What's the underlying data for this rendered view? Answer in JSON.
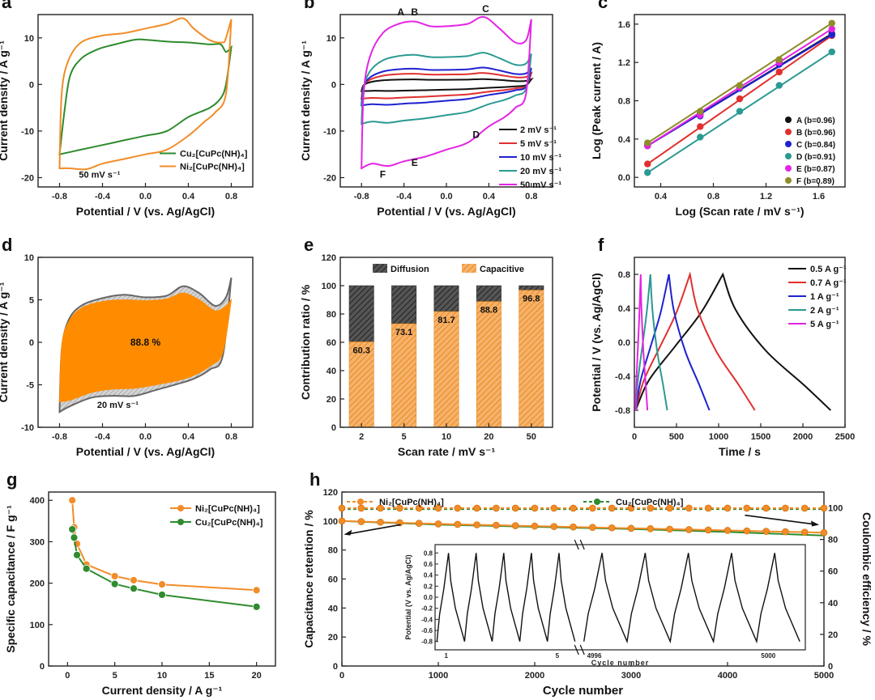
{
  "palette": {
    "green": "#2E8B2E",
    "orange": "#F28C28",
    "black": "#111111",
    "red": "#E0302F",
    "blue": "#1F22D0",
    "teal": "#2A9A92",
    "magenta": "#E424E4",
    "olive": "#8E8E2A",
    "grey": "#BDBDBD"
  },
  "panels": [
    {
      "letter": "a",
      "type": "cv",
      "xlabel": "Potential / V (vs. Ag/AgCl)",
      "ylabel": "Current density / A g⁻¹",
      "xlim": [
        -1.0,
        1.0
      ],
      "ylim": [
        -22,
        15
      ],
      "xticks": [
        "-0.8",
        "-0.4",
        "0.0",
        "0.4",
        "0.8"
      ],
      "yticks": [
        "-20",
        "-10",
        "0",
        "10"
      ],
      "annotation": "50 mV s⁻¹",
      "legend": [
        "Cu₂[CuPc(NH)₄]",
        "Ni₂[CuPc(NH)₄]"
      ],
      "series": [
        {
          "name": "Cu₂[CuPc(NH)₄]",
          "color": "green",
          "upper": [
            [
              -0.8,
              -15
            ],
            [
              -0.75,
              -5
            ],
            [
              -0.7,
              2
            ],
            [
              -0.6,
              5.5
            ],
            [
              -0.45,
              7.5
            ],
            [
              -0.3,
              8.5
            ],
            [
              -0.1,
              9.6
            ],
            [
              0.0,
              9.6
            ],
            [
              0.2,
              9.2
            ],
            [
              0.4,
              9
            ],
            [
              0.6,
              8.6
            ],
            [
              0.7,
              8.6
            ],
            [
              0.75,
              7
            ],
            [
              0.8,
              8
            ]
          ],
          "lower": [
            [
              -0.8,
              -15
            ],
            [
              -0.6,
              -14
            ],
            [
              -0.4,
              -13
            ],
            [
              -0.2,
              -12
            ],
            [
              0.0,
              -11
            ],
            [
              0.2,
              -10
            ],
            [
              0.4,
              -7
            ],
            [
              0.6,
              -5
            ],
            [
              0.7,
              -3
            ],
            [
              0.75,
              0
            ],
            [
              0.8,
              8
            ]
          ]
        },
        {
          "name": "Ni₂[CuPc(NH)₄]",
          "color": "orange",
          "upper": [
            [
              -0.8,
              -18
            ],
            [
              -0.78,
              -2
            ],
            [
              -0.72,
              5
            ],
            [
              -0.6,
              9
            ],
            [
              -0.4,
              10.5
            ],
            [
              -0.2,
              11
            ],
            [
              0.0,
              12
            ],
            [
              0.2,
              13
            ],
            [
              0.35,
              14.2
            ],
            [
              0.45,
              12
            ],
            [
              0.6,
              9.5
            ],
            [
              0.72,
              9
            ],
            [
              0.75,
              10
            ],
            [
              0.8,
              14
            ]
          ],
          "lower": [
            [
              -0.8,
              -18
            ],
            [
              -0.7,
              -18
            ],
            [
              -0.55,
              -18.2
            ],
            [
              -0.4,
              -17
            ],
            [
              -0.2,
              -16
            ],
            [
              0.0,
              -15
            ],
            [
              0.2,
              -14
            ],
            [
              0.4,
              -11
            ],
            [
              0.55,
              -8
            ],
            [
              0.65,
              -6
            ],
            [
              0.75,
              -2
            ],
            [
              0.8,
              14
            ]
          ]
        }
      ]
    },
    {
      "letter": "b",
      "type": "cv",
      "xlabel": "Potential / V (vs. Ag/AgCl)",
      "ylabel": "Current density / A g⁻¹",
      "xlim": [
        -1.0,
        1.0
      ],
      "ylim": [
        -22,
        15
      ],
      "xticks": [
        "-0.8",
        "-0.4",
        "0.0",
        "0.4",
        "0.8"
      ],
      "yticks": [
        "-20",
        "-10",
        "0",
        "10"
      ],
      "peak_labels": [
        {
          "text": "A",
          "x": -0.43,
          "y": 14.8
        },
        {
          "text": "B",
          "x": -0.3,
          "y": 14.8
        },
        {
          "text": "C",
          "x": 0.37,
          "y": 15.5
        },
        {
          "text": "D",
          "x": 0.28,
          "y": -11.5
        },
        {
          "text": "E",
          "x": -0.3,
          "y": -17.5
        },
        {
          "text": "F",
          "x": -0.6,
          "y": -20
        }
      ],
      "legend": [
        "2 mV s⁻¹",
        "5 mV s⁻¹",
        "10 mV s⁻¹",
        "20 mV s⁻¹",
        "50 mV s⁻¹"
      ],
      "series": [
        {
          "name": "2 mV s⁻¹",
          "color": "black",
          "scale": 0.08
        },
        {
          "name": "5 mV s⁻¹",
          "color": "red",
          "scale": 0.17
        },
        {
          "name": "10 mV s⁻¹",
          "color": "blue",
          "scale": 0.25
        },
        {
          "name": "20 mV s⁻¹",
          "color": "teal",
          "scale": 0.47
        },
        {
          "name": "50 mV s⁻¹",
          "color": "magenta",
          "scale": 1.0
        }
      ],
      "base_upper": [
        [
          -0.8,
          -18
        ],
        [
          -0.78,
          -2
        ],
        [
          -0.72,
          6
        ],
        [
          -0.6,
          11
        ],
        [
          -0.45,
          13
        ],
        [
          -0.3,
          13.5
        ],
        [
          -0.15,
          12.5
        ],
        [
          0.0,
          12.5
        ],
        [
          0.2,
          13
        ],
        [
          0.35,
          14.5
        ],
        [
          0.5,
          12
        ],
        [
          0.65,
          9
        ],
        [
          0.75,
          9.5
        ],
        [
          0.8,
          14
        ]
      ],
      "base_lower": [
        [
          -0.8,
          -18
        ],
        [
          -0.7,
          -17
        ],
        [
          -0.55,
          -17.5
        ],
        [
          -0.4,
          -16.5
        ],
        [
          -0.2,
          -15.5
        ],
        [
          0.0,
          -14
        ],
        [
          0.2,
          -12.5
        ],
        [
          0.4,
          -9
        ],
        [
          0.55,
          -7
        ],
        [
          0.65,
          -5
        ],
        [
          0.75,
          -2
        ],
        [
          0.8,
          14
        ]
      ]
    },
    {
      "letter": "c",
      "type": "scatter-line",
      "xlabel": "Log (Scan rate / mV s⁻¹)",
      "ylabel": "Log (Peak current / A)",
      "xlim": [
        0.2,
        1.8
      ],
      "ylim": [
        -0.1,
        1.7
      ],
      "xticks": [
        "0.4",
        "0.8",
        "1.2",
        "1.6"
      ],
      "yticks": [
        "0.0",
        "0.4",
        "0.8",
        "1.2",
        "1.6"
      ],
      "x": [
        0.3,
        0.7,
        1.0,
        1.3,
        1.7
      ],
      "series": [
        {
          "name": "A (b=0.96)",
          "color": "black",
          "values": [
            0.33,
            0.67,
            0.95,
            1.21,
            1.5
          ]
        },
        {
          "name": "B (b=0.96)",
          "color": "red",
          "values": [
            0.14,
            0.53,
            0.82,
            1.1,
            1.48
          ]
        },
        {
          "name": "C (b=0.84)",
          "color": "blue",
          "values": [
            0.33,
            0.64,
            0.93,
            1.18,
            1.49
          ]
        },
        {
          "name": "D (b=0.91)",
          "color": "teal",
          "values": [
            0.05,
            0.42,
            0.69,
            0.96,
            1.31
          ]
        },
        {
          "name": "E (b=0.87)",
          "color": "magenta",
          "values": [
            0.33,
            0.65,
            0.94,
            1.2,
            1.55
          ]
        },
        {
          "name": "F (b=0.89)",
          "color": "olive",
          "values": [
            0.36,
            0.69,
            0.96,
            1.23,
            1.61
          ]
        }
      ]
    },
    {
      "letter": "d",
      "type": "fill",
      "xlabel": "Potential / V (vs. Ag/AgCl)",
      "ylabel": "Current density / A g⁻¹",
      "xlim": [
        -1.0,
        1.0
      ],
      "ylim": [
        -10,
        10
      ],
      "xticks": [
        "-0.8",
        "-0.4",
        "0.0",
        "0.4",
        "0.8"
      ],
      "yticks": [
        "-10",
        "-5",
        "0",
        "5",
        "10"
      ],
      "center_label": "88.8 %",
      "annotation": "20 mV s⁻¹",
      "outer_upper": [
        [
          -0.8,
          -8.2
        ],
        [
          -0.78,
          -1
        ],
        [
          -0.72,
          2.5
        ],
        [
          -0.6,
          4.3
        ],
        [
          -0.4,
          5.2
        ],
        [
          -0.2,
          5.6
        ],
        [
          0.0,
          5.3
        ],
        [
          0.2,
          5.5
        ],
        [
          0.35,
          6.6
        ],
        [
          0.5,
          5.8
        ],
        [
          0.65,
          4.3
        ],
        [
          0.75,
          5.3
        ],
        [
          0.8,
          7.6
        ]
      ],
      "outer_lower": [
        [
          -0.8,
          -8.2
        ],
        [
          -0.7,
          -7.5
        ],
        [
          -0.5,
          -6.5
        ],
        [
          -0.3,
          -6.3
        ],
        [
          -0.1,
          -6.3
        ],
        [
          0.1,
          -5.6
        ],
        [
          0.3,
          -4.9
        ],
        [
          0.45,
          -4.3
        ],
        [
          0.6,
          -3.2
        ],
        [
          0.72,
          -1.6
        ],
        [
          0.8,
          7.6
        ]
      ],
      "inner_upper": [
        [
          -0.8,
          -7
        ],
        [
          -0.78,
          -0.5
        ],
        [
          -0.72,
          2.3
        ],
        [
          -0.6,
          4
        ],
        [
          -0.4,
          4.8
        ],
        [
          -0.2,
          5
        ],
        [
          0.0,
          4.9
        ],
        [
          0.2,
          5.1
        ],
        [
          0.35,
          5.8
        ],
        [
          0.5,
          5
        ],
        [
          0.65,
          3.7
        ],
        [
          0.75,
          4.3
        ],
        [
          0.8,
          5
        ]
      ],
      "inner_lower": [
        [
          -0.8,
          -7
        ],
        [
          -0.7,
          -6.8
        ],
        [
          -0.5,
          -5.9
        ],
        [
          -0.3,
          -5.5
        ],
        [
          -0.1,
          -5.4
        ],
        [
          0.1,
          -5
        ],
        [
          0.3,
          -4.5
        ],
        [
          0.45,
          -3.9
        ],
        [
          0.6,
          -2.8
        ],
        [
          0.72,
          -1.2
        ],
        [
          0.8,
          5
        ]
      ]
    },
    {
      "letter": "e",
      "type": "stacked-bar",
      "xlabel": "Scan rate / mV s⁻¹",
      "ylabel": "Contribution ratio / %",
      "ylim": [
        0,
        120
      ],
      "yticks": [
        "0",
        "20",
        "40",
        "60",
        "80",
        "100",
        "120"
      ],
      "categories": [
        "2",
        "5",
        "10",
        "20",
        "50"
      ],
      "capacitive": [
        60.3,
        73.1,
        81.7,
        88.8,
        96.8
      ],
      "labels": [
        "60.3",
        "73.1",
        "81.7",
        "88.8",
        "96.8"
      ],
      "legend": [
        "Diffusion",
        "Capacitive"
      ]
    },
    {
      "letter": "f",
      "type": "gcd",
      "xlabel": "Time / s",
      "ylabel": "Potential / V (vs. Ag/AgCl)",
      "xlim": [
        0,
        2500
      ],
      "ylim": [
        -1.0,
        1.0
      ],
      "xticks": [
        "0",
        "500",
        "1000",
        "1500",
        "2000",
        "2500"
      ],
      "yticks": [
        "-0.8",
        "-0.4",
        "0.0",
        "0.4",
        "0.8"
      ],
      "series": [
        {
          "name": "0.5 A g⁻¹",
          "color": "black",
          "charge_end": 1050,
          "discharge_end": 2330
        },
        {
          "name": "0.7 A g⁻¹",
          "color": "red",
          "charge_end": 660,
          "discharge_end": 1430
        },
        {
          "name": "1 A g⁻¹",
          "color": "blue",
          "charge_end": 410,
          "discharge_end": 890
        },
        {
          "name": "2 A g⁻¹",
          "color": "teal",
          "charge_end": 190,
          "discharge_end": 390
        },
        {
          "name": "5 A g⁻¹",
          "color": "magenta",
          "charge_end": 75,
          "discharge_end": 155
        }
      ]
    },
    {
      "letter": "g",
      "type": "line",
      "xlabel": "Current density / A g⁻¹",
      "ylabel": "Specific capacitance / F g⁻¹",
      "xlim": [
        -2,
        22
      ],
      "ylim": [
        0,
        420
      ],
      "xticks": [
        "0",
        "5",
        "10",
        "15",
        "20"
      ],
      "yticks": [
        "0",
        "100",
        "200",
        "300",
        "400"
      ],
      "x": [
        0.5,
        0.7,
        1,
        2,
        5,
        7,
        10,
        20
      ],
      "series": [
        {
          "name": "Ni₂[CuPc(NH)₄]",
          "color": "orange",
          "values": [
            400,
            335,
            295,
            245,
            217,
            207,
            197,
            183
          ]
        },
        {
          "name": "Cu₂[CuPc(NH)₄]",
          "color": "green",
          "values": [
            330,
            310,
            268,
            235,
            198,
            187,
            172,
            143
          ]
        }
      ]
    },
    {
      "letter": "h",
      "type": "cycle",
      "xlabel": "Cycle number",
      "ylabel": "Capacitance retention / %",
      "y2label": "Coulombic efficiency / %",
      "xlim": [
        0,
        5000
      ],
      "ylim": [
        0,
        120
      ],
      "y2lim": [
        0,
        110
      ],
      "xticks": [
        "0",
        "1000",
        "2000",
        "3000",
        "4000",
        "5000"
      ],
      "yticks": [
        "0",
        "20",
        "40",
        "60",
        "80",
        "100",
        "120"
      ],
      "y2ticks": [
        "0",
        "20",
        "40",
        "60",
        "80",
        "100"
      ],
      "legend": [
        "Ni₂[CuPc(NH)₄]",
        "Cu₂[CuPc(NH)₄]"
      ],
      "retention_ni": [
        [
          0,
          100
        ],
        [
          1000,
          98
        ],
        [
          2000,
          96.5
        ],
        [
          3000,
          95
        ],
        [
          4000,
          93.5
        ],
        [
          5000,
          92
        ]
      ],
      "retention_cu": [
        [
          0,
          100
        ],
        [
          1000,
          97.5
        ],
        [
          2000,
          96
        ],
        [
          3000,
          94.5
        ],
        [
          4000,
          92.5
        ],
        [
          5000,
          90
        ]
      ],
      "efficiency_ni": 99.8,
      "efficiency_cu": 99.2,
      "inset": {
        "xlabel": "Cycle number",
        "ylabel": "Potential (V vs. Ag/AgCl)",
        "xticks": [
          "1",
          "5",
          "4996",
          "5000"
        ],
        "yticks": [
          "-0.8",
          "-0.6",
          "-0.4",
          "-0.2",
          "0.0",
          "0.2",
          "0.4",
          "0.6",
          "0.8"
        ],
        "cycles_left": 5,
        "cycles_right": 5
      }
    }
  ]
}
